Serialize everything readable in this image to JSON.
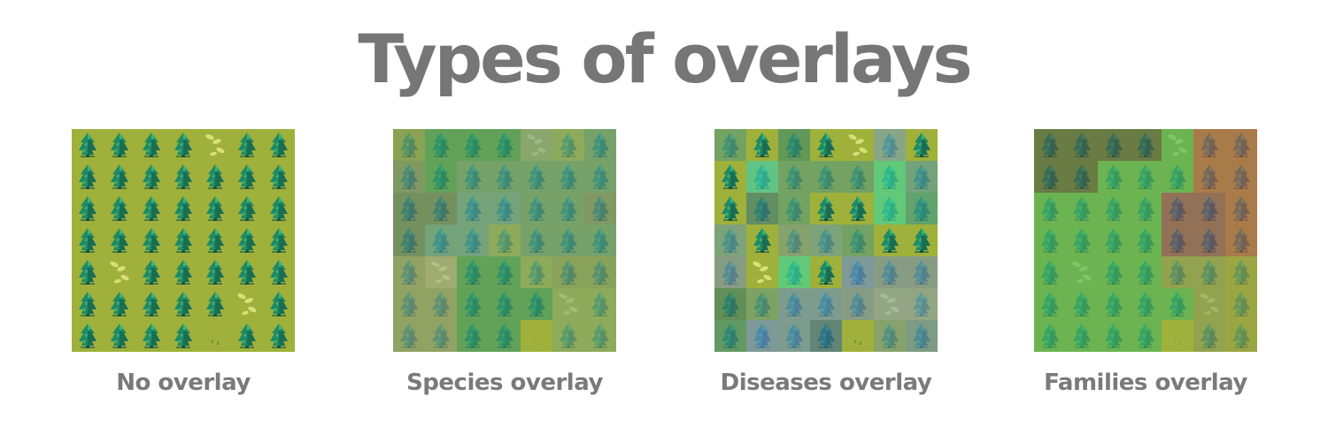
{
  "title": "Types of overlays",
  "colors": {
    "background": "#ffffff",
    "text": "#767676",
    "grass": "#9fb13a",
    "tree_dark": "#14564a",
    "tree_mid": "#1f8a63",
    "tree_light": "#36b37e",
    "sprout": "#d6e07a"
  },
  "panels": [
    {
      "caption": "No overlay",
      "tiles": [
        "tree",
        "tree",
        "tree",
        "tree",
        "sprout",
        "tree",
        "tree",
        "tree",
        "tree",
        "tree",
        "tree",
        "tree",
        "tree",
        "tree",
        "tree",
        "tree",
        "tree",
        "tree",
        "tree",
        "tree",
        "tree",
        "tree",
        "tree",
        "tree",
        "tree",
        "tree",
        "tree",
        "tree",
        "tree",
        "sprout",
        "tree",
        "tree",
        "tree",
        "tree",
        "tree",
        "tree",
        "tree",
        "tree",
        "tree",
        "tree",
        "sprout",
        "tree",
        "tree",
        "tree",
        "tree",
        "tree",
        "grass",
        "tree",
        "tree"
      ],
      "overlay": [
        "",
        "",
        "",
        "",
        "",
        "",
        "",
        "",
        "",
        "",
        "",
        "",
        "",
        "",
        "",
        "",
        "",
        "",
        "",
        "",
        "",
        "",
        "",
        "",
        "",
        "",
        "",
        "",
        "",
        "",
        "",
        "",
        "",
        "",
        "",
        "",
        "",
        "",
        "",
        "",
        "",
        "",
        "",
        "",
        "",
        "",
        "",
        "",
        ""
      ]
    },
    {
      "caption": "Species overlay",
      "tiles": [
        "tree",
        "tree",
        "tree",
        "tree",
        "sprout",
        "tree",
        "tree",
        "tree",
        "tree",
        "tree",
        "tree",
        "tree",
        "tree",
        "tree",
        "tree",
        "tree",
        "tree",
        "tree",
        "tree",
        "tree",
        "tree",
        "tree",
        "tree",
        "tree",
        "tree",
        "tree",
        "tree",
        "tree",
        "tree",
        "sprout",
        "tree",
        "tree",
        "tree",
        "tree",
        "tree",
        "tree",
        "tree",
        "tree",
        "tree",
        "tree",
        "sprout",
        "tree",
        "tree",
        "tree",
        "tree",
        "tree",
        "grass",
        "tree",
        "tree"
      ],
      "overlay": [
        "#7d9a63",
        "#3d9a6a",
        "#3d9a6a",
        "#3d9a6a",
        "#7da08c",
        "#83a86d",
        "#5d9a88",
        "#6d8a7a",
        "#3d9a6a",
        "#5d9a88",
        "#5d9a88",
        "#5d9a88",
        "#5d9a88",
        "#5d9a88",
        "#5a7d76",
        "#5a7d76",
        "#5a9aa0",
        "#5a9aa0",
        "#5d9a88",
        "#5d9a88",
        "#6d8a7a",
        "#5a7d76",
        "#5a9aa0",
        "#5a9aa0",
        "#83a86d",
        "#5d9a88",
        "#5d9a88",
        "#5d9a88",
        "#8a9a7d",
        "#a0a890",
        "#3d9a6a",
        "#3d9a6a",
        "#83a86d",
        "#7d9a6d",
        "#7d9a6d",
        "#8a9a7d",
        "#8a9a7d",
        "#3d9a6a",
        "#3d9a6a",
        "#3d9a6a",
        "#83a86d",
        "#83a86d",
        "#8a9a7d",
        "#8a9a7d",
        "#3d9a6a",
        "#3d9a6a",
        "#9fb13a",
        "#83a86d",
        "#83a86d"
      ]
    },
    {
      "caption": "Diseases overlay",
      "tiles": [
        "tree",
        "tree",
        "tree",
        "tree",
        "sprout",
        "tree",
        "tree",
        "tree",
        "tree",
        "tree",
        "tree",
        "tree",
        "tree",
        "tree",
        "tree",
        "tree",
        "tree",
        "tree",
        "tree",
        "tree",
        "tree",
        "tree",
        "tree",
        "tree",
        "tree",
        "tree",
        "tree",
        "tree",
        "tree",
        "sprout",
        "tree",
        "tree",
        "tree",
        "tree",
        "tree",
        "tree",
        "tree",
        "tree",
        "tree",
        "tree",
        "sprout",
        "tree",
        "tree",
        "tree",
        "tree",
        "tree",
        "grass",
        "tree",
        "tree"
      ],
      "overlay": [
        "#5a9a7a",
        "",
        "#3d8a6a",
        "",
        "",
        "#7aa0b4",
        "",
        "",
        "#3dd0b0",
        "#5a9a7a",
        "#5a9a7a",
        "#5a9a7a",
        "#3dd8a0",
        "#5a9aa0",
        "",
        "#3d7a7a",
        "#5a9a7a",
        "",
        "",
        "#3dd8a0",
        "#3d9a8a",
        "#6a9aa0",
        "",
        "#7a9a8a",
        "#6a9aa0",
        "#5a9a7a",
        "",
        "",
        "#7a90b0",
        "",
        "#3dd8a0",
        "",
        "#6a8ad0",
        "#7a90b0",
        "#7a90b0",
        "#3d7a6a",
        "#6a9a7a",
        "#6a90c0",
        "#6a90c0",
        "#7a90b0",
        "#8aa0b0",
        "#8aa0b0",
        "#3d8a7a",
        "#6a8ad0",
        "#6a90c0",
        "#3d6a9a",
        "",
        "#7a9a8a",
        "#6a90b0"
      ]
    },
    {
      "caption": "Families overlay",
      "tiles": [
        "tree",
        "tree",
        "tree",
        "tree",
        "sprout",
        "tree",
        "tree",
        "tree",
        "tree",
        "tree",
        "tree",
        "tree",
        "tree",
        "tree",
        "tree",
        "tree",
        "tree",
        "tree",
        "tree",
        "tree",
        "tree",
        "tree",
        "tree",
        "tree",
        "tree",
        "tree",
        "tree",
        "tree",
        "tree",
        "sprout",
        "tree",
        "tree",
        "tree",
        "tree",
        "tree",
        "tree",
        "tree",
        "tree",
        "tree",
        "tree",
        "sprout",
        "tree",
        "tree",
        "tree",
        "tree",
        "tree",
        "grass",
        "tree",
        "tree"
      ],
      "overlay": [
        "#4a5a4a",
        "#4a5a4a",
        "#4a5a4a",
        "#4a5a4a",
        "#4db561",
        "#b05a50",
        "#b05a50",
        "#4a5a4a",
        "#4a5a4a",
        "#4db561",
        "#4db561",
        "#4db561",
        "#b05a50",
        "#b05a50",
        "#4db561",
        "#4db561",
        "#4db561",
        "#4db561",
        "#8a4a68",
        "#8a4a68",
        "#b05a50",
        "#4db561",
        "#4db561",
        "#4db561",
        "#4db561",
        "#8a4a68",
        "#8a4a68",
        "#b05a50",
        "#4db561",
        "#4db561",
        "#4db561",
        "#4db561",
        "#8a9a5a",
        "#8a9a5a",
        "#9aa048",
        "#4db561",
        "#4db561",
        "#4db561",
        "#4db561",
        "#4db561",
        "#8a9a5a",
        "#9aa048",
        "#4db561",
        "#4db561",
        "#4db561",
        "#4db561",
        "#9fb13a",
        "#8a9a5a",
        "#9aa048"
      ]
    }
  ]
}
